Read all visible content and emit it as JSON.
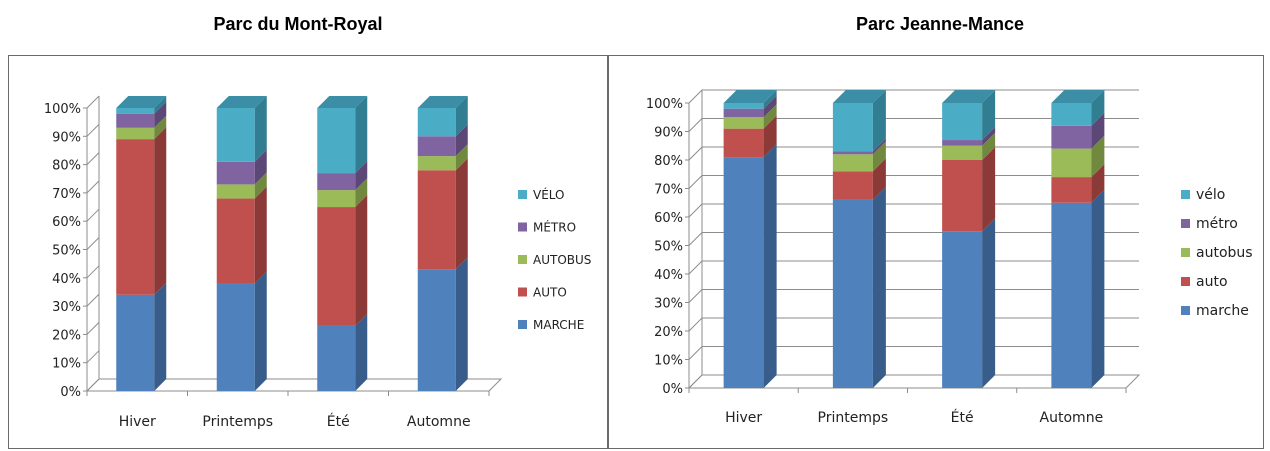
{
  "chart_data": [
    {
      "type": "bar",
      "stacked": true,
      "three_d": true,
      "title": "Parc du Mont-Royal",
      "categories": [
        "Hiver",
        "Printemps",
        "Été",
        "Automne"
      ],
      "ylim": [
        0,
        100
      ],
      "yticks": [
        "0%",
        "10%",
        "20%",
        "30%",
        "40%",
        "50%",
        "60%",
        "70%",
        "80%",
        "90%",
        "100%"
      ],
      "grid": false,
      "legend_position": "right",
      "series": [
        {
          "name": "MARCHE",
          "color": "#4f81bd",
          "side": "#385d8a",
          "values": [
            34,
            38,
            23,
            43
          ]
        },
        {
          "name": "AUTO",
          "color": "#c0504d",
          "side": "#8c3a38",
          "values": [
            55,
            30,
            42,
            35
          ]
        },
        {
          "name": "AUTOBUS",
          "color": "#9bbb59",
          "side": "#71893f",
          "values": [
            4,
            5,
            6,
            5
          ]
        },
        {
          "name": "MÉTRO",
          "color": "#8064a2",
          "side": "#5c4876",
          "values": [
            5,
            8,
            6,
            7
          ]
        },
        {
          "name": "VÉLO",
          "color": "#4bacc6",
          "side": "#317d91",
          "values": [
            2,
            19,
            23,
            10
          ]
        }
      ]
    },
    {
      "type": "bar",
      "stacked": true,
      "three_d": true,
      "title": "Parc Jeanne-Mance",
      "categories": [
        "Hiver",
        "Printemps",
        "Été",
        "Automne"
      ],
      "ylim": [
        0,
        100
      ],
      "yticks": [
        "0%",
        "10%",
        "20%",
        "30%",
        "40%",
        "50%",
        "60%",
        "70%",
        "80%",
        "90%",
        "100%"
      ],
      "grid": true,
      "legend_position": "right",
      "series": [
        {
          "name": "marche",
          "color": "#4f81bd",
          "side": "#385d8a",
          "values": [
            81,
            66,
            55,
            65
          ]
        },
        {
          "name": "auto",
          "color": "#c0504d",
          "side": "#8c3a38",
          "values": [
            10,
            10,
            25,
            9
          ]
        },
        {
          "name": "autobus",
          "color": "#9bbb59",
          "side": "#71893f",
          "values": [
            4,
            6,
            5,
            10
          ]
        },
        {
          "name": "métro",
          "color": "#8064a2",
          "side": "#5c4876",
          "values": [
            3,
            1,
            2,
            8
          ]
        },
        {
          "name": "vélo",
          "color": "#4bacc6",
          "side": "#317d91",
          "values": [
            2,
            17,
            13,
            8
          ]
        }
      ]
    }
  ]
}
